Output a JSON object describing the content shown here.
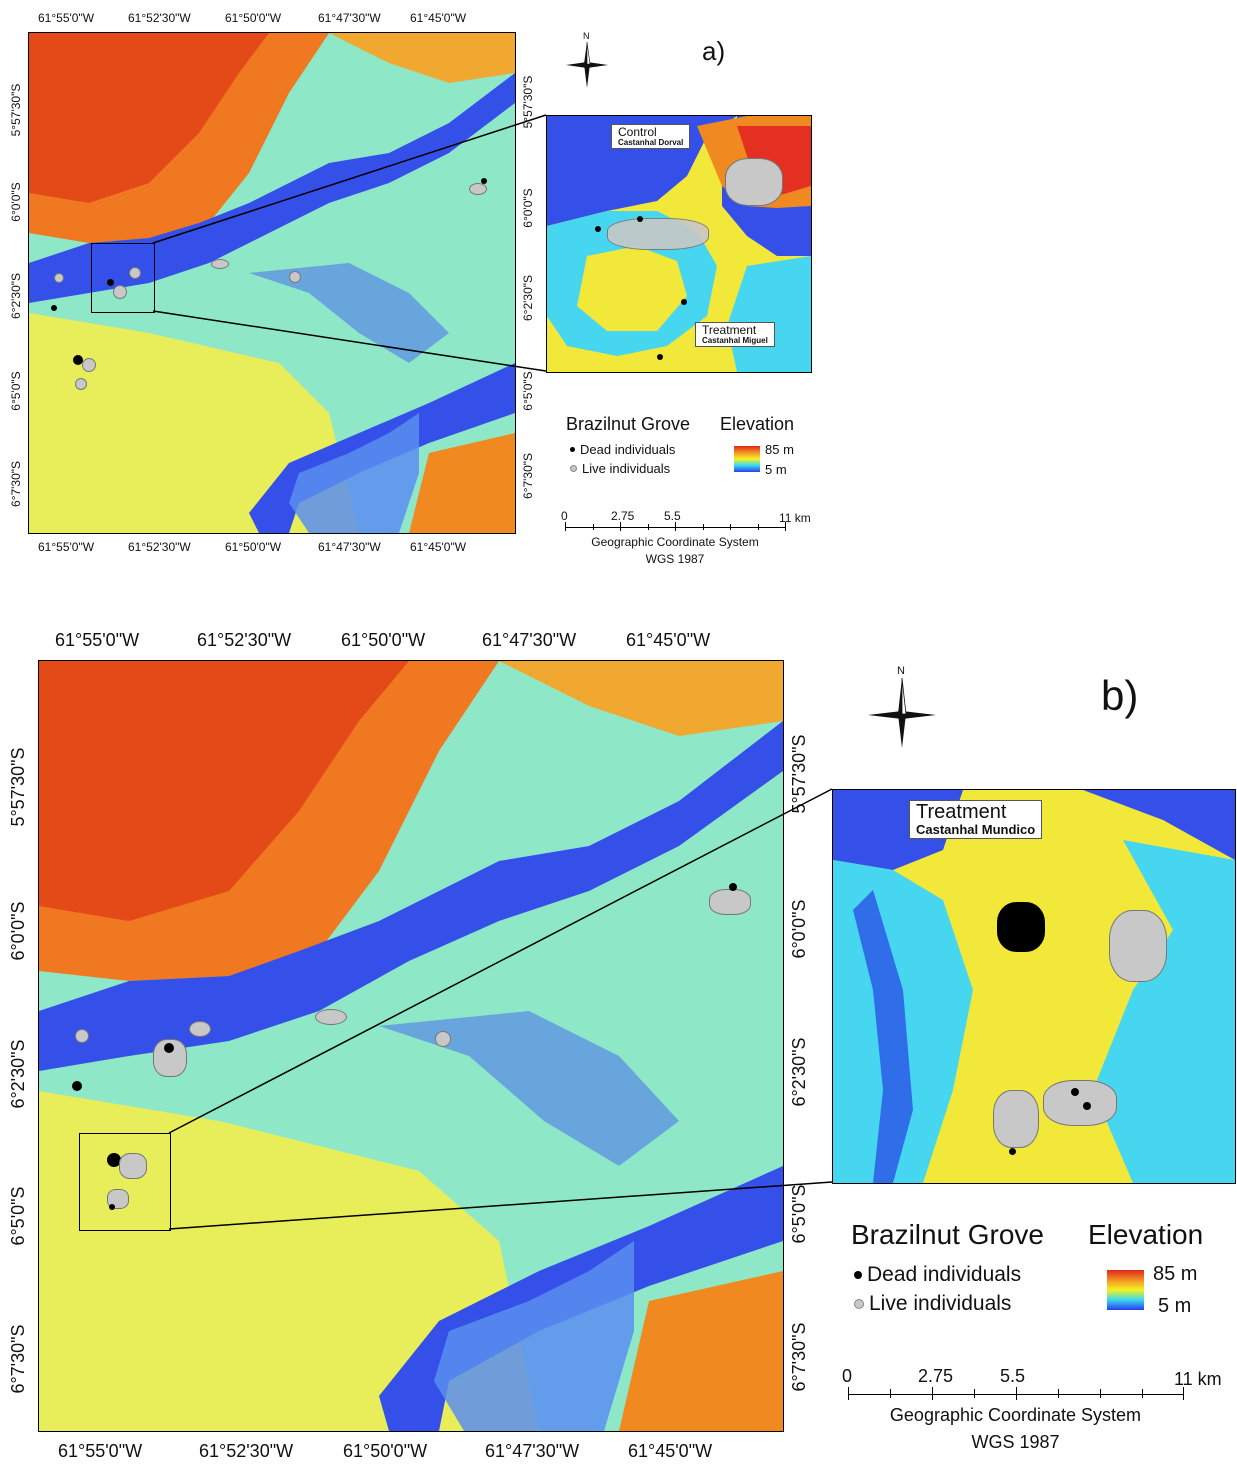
{
  "panel_a": {
    "letter": "a)",
    "lon_labels": [
      "61°55'0\"W",
      "61°52'30\"W",
      "61°50'0\"W",
      "61°47'30\"W",
      "61°45'0\"W"
    ],
    "lat_labels_left": [
      "5°57'30\"S",
      "6°0'0\"S",
      "6°2'30\"S",
      "6°5'0\"S",
      "6°7'30\"S"
    ],
    "lat_labels_right": [
      "5°57'30\"S",
      "6°0'0\"S",
      "6°2'30\"S",
      "6°5'0\"S",
      "6°7'30\"S"
    ],
    "inset_callouts": [
      {
        "title": "Control",
        "subtitle": "Castanhal Dorval"
      },
      {
        "title": "Treatment",
        "subtitle": "Castanhal Miguel"
      }
    ],
    "legend": {
      "grove_title": "Brazilnut Grove",
      "dead_label": "Dead individuals",
      "live_label": "Live individuals",
      "elevation_title": "Elevation",
      "elev_high": "85 m",
      "elev_low": "5 m"
    },
    "scale": {
      "ticks": [
        "0",
        "2.75",
        "5.5",
        "11 km"
      ],
      "caption1": "Geographic Coordinate System",
      "caption2": "WGS 1987"
    },
    "north_label": "N"
  },
  "panel_b": {
    "letter": "b)",
    "lon_labels": [
      "61°55'0\"W",
      "61°52'30\"W",
      "61°50'0\"W",
      "61°47'30\"W",
      "61°45'0\"W"
    ],
    "lat_labels_left": [
      "5°57'30\"S",
      "6°0'0\"S",
      "6°2'30\"S",
      "6°5'0\"S",
      "6°7'30\"S"
    ],
    "lat_labels_right": [
      "5°57'30\"S",
      "6°0'0\"S",
      "6°2'30\"S",
      "6°5'0\"S",
      "6°7'30\"S"
    ],
    "inset_callouts": [
      {
        "title": "Treatment",
        "subtitle": "Castanhal Mundico"
      }
    ],
    "legend": {
      "grove_title": "Brazilnut Grove",
      "dead_label": "Dead individuals",
      "live_label": "Live individuals",
      "elevation_title": "Elevation",
      "elev_high": "85 m",
      "elev_low": "5 m"
    },
    "scale": {
      "ticks": [
        "0",
        "2.75",
        "5.5",
        "11 km"
      ],
      "caption1": "Geographic Coordinate System",
      "caption2": "WGS 1987"
    },
    "north_label": "N"
  },
  "colors": {
    "high": "#e0261a",
    "mid_high": "#f5a623",
    "mid": "#f3f322",
    "low_mid": "#38d7f2",
    "low": "#2a3cf0",
    "dead": "#000000",
    "live": "#c8c8c8"
  }
}
